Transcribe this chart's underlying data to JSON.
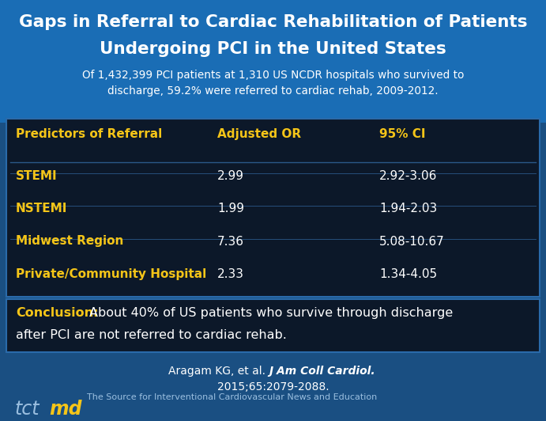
{
  "title_line1": "Gaps in Referral to Cardiac Rehabilitation of Patients",
  "title_line2": "Undergoing PCI in the United States",
  "subtitle_line1": "Of 1,432,399 PCI patients at 1,310 US NCDR hospitals who survived to",
  "subtitle_line2": "discharge, 59.2% were referred to cardiac rehab, 2009-2012.",
  "table_headers": [
    "Predictors of Referral",
    "Adjusted OR",
    "95% CI"
  ],
  "table_rows": [
    [
      "STEMI",
      "2.99",
      "2.92-3.06"
    ],
    [
      "NSTEMI",
      "1.99",
      "1.94-2.03"
    ],
    [
      "Midwest Region",
      "7.36",
      "5.08-10.67"
    ],
    [
      "Private/Community Hospital",
      "2.33",
      "1.34-4.05"
    ]
  ],
  "conclusion_label": "Conclusion:",
  "conclusion_body_line1": "  About 40% of US patients who survive through discharge",
  "conclusion_body_line2": "after PCI are not referred to cardiac rehab.",
  "citation_plain": "Aragam KG, et al. ",
  "citation_italic": "J Am Coll Cardiol.",
  "citation_line2": "2015;65:2079-2088.",
  "footer_text": "The Source for Interventional Cardiovascular News and Education",
  "bg_blue": "#1a6db5",
  "bg_dark_blue": "#1a4f82",
  "table_bg": "#0c1829",
  "conclusion_bg": "#0c1829",
  "title_color": "#ffffff",
  "subtitle_color": "#ffffff",
  "header_color": "#f5c518",
  "row_label_color": "#f5c518",
  "row_value_color": "#ffffff",
  "conclusion_label_color": "#f5c518",
  "conclusion_body_color": "#ffffff",
  "citation_color": "#ffffff",
  "footer_color": "#9bbfe0",
  "tct_color": "#9bbfe0",
  "md_color": "#f5c518",
  "border_color": "#2a6aaa",
  "divider_color": "#2a5888"
}
